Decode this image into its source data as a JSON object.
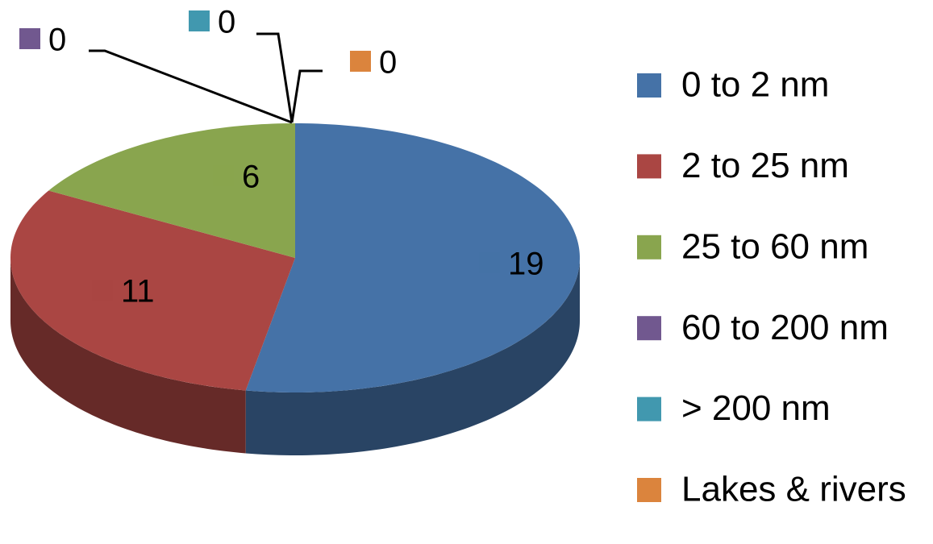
{
  "chart_data": {
    "type": "pie",
    "categories": [
      "0 to 2 nm",
      "2 to 25 nm",
      "25 to 60 nm",
      "60 to 200 nm",
      "> 200 nm",
      "Lakes & rivers"
    ],
    "values": [
      19,
      11,
      6,
      0,
      0,
      0
    ],
    "colors": [
      "#4572a7",
      "#aa4643",
      "#89a54e",
      "#71588f",
      "#4198af",
      "#db843d"
    ],
    "legend": "right"
  }
}
